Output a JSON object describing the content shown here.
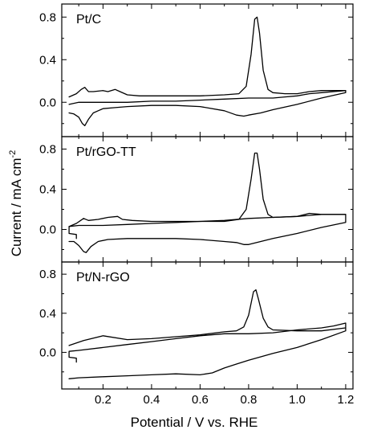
{
  "chart_data": {
    "type": "line",
    "xlabel": "Potential / V vs. RHE",
    "ylabel_main": "Current / mA cm",
    "ylabel_sup": "-2",
    "xlim": [
      0.03,
      1.23
    ],
    "xticks": [
      "0.2",
      "0.4",
      "0.6",
      "0.8",
      "1.0",
      "1.2"
    ],
    "xtick_values": [
      0.2,
      0.4,
      0.6,
      0.8,
      1.0,
      1.2
    ],
    "panels": [
      {
        "label": "Pt/C",
        "ylim": [
          -0.3,
          0.9
        ],
        "yticks": [
          "0.8",
          "0.4",
          "0.0"
        ],
        "ytick_values": [
          0.8,
          0.4,
          0.0
        ],
        "curves": [
          [
            [
              0.06,
              -0.1
            ],
            [
              0.08,
              -0.11
            ],
            [
              0.1,
              -0.14
            ],
            [
              0.115,
              -0.2
            ],
            [
              0.125,
              -0.22
            ],
            [
              0.14,
              -0.16
            ],
            [
              0.16,
              -0.1
            ],
            [
              0.18,
              -0.08
            ],
            [
              0.2,
              -0.06
            ],
            [
              0.25,
              -0.05
            ],
            [
              0.3,
              -0.04
            ],
            [
              0.4,
              -0.03
            ],
            [
              0.5,
              -0.03
            ],
            [
              0.6,
              -0.04
            ],
            [
              0.7,
              -0.08
            ],
            [
              0.75,
              -0.12
            ],
            [
              0.78,
              -0.13
            ],
            [
              0.8,
              -0.12
            ],
            [
              0.85,
              -0.1
            ],
            [
              0.9,
              -0.07
            ],
            [
              1.0,
              -0.02
            ],
            [
              1.1,
              0.04
            ],
            [
              1.2,
              0.09
            ],
            [
              1.2,
              0.11
            ],
            [
              1.15,
              0.1
            ],
            [
              1.1,
              0.09
            ],
            [
              1.05,
              0.08
            ],
            [
              1.0,
              0.06
            ],
            [
              0.95,
              0.05
            ],
            [
              0.9,
              0.04
            ],
            [
              0.85,
              0.04
            ],
            [
              0.8,
              0.04
            ],
            [
              0.7,
              0.03
            ],
            [
              0.6,
              0.02
            ],
            [
              0.5,
              0.01
            ],
            [
              0.4,
              0.01
            ],
            [
              0.3,
              0.0
            ],
            [
              0.2,
              0.0
            ],
            [
              0.1,
              0.0
            ],
            [
              0.06,
              -0.02
            ]
          ],
          [
            [
              0.06,
              0.05
            ],
            [
              0.09,
              0.08
            ],
            [
              0.11,
              0.12
            ],
            [
              0.125,
              0.14
            ],
            [
              0.14,
              0.1
            ],
            [
              0.16,
              0.1
            ],
            [
              0.2,
              0.11
            ],
            [
              0.22,
              0.1
            ],
            [
              0.25,
              0.12
            ],
            [
              0.27,
              0.1
            ],
            [
              0.3,
              0.07
            ],
            [
              0.35,
              0.06
            ],
            [
              0.45,
              0.06
            ],
            [
              0.6,
              0.06
            ],
            [
              0.7,
              0.07
            ],
            [
              0.76,
              0.08
            ],
            [
              0.79,
              0.15
            ],
            [
              0.81,
              0.45
            ],
            [
              0.825,
              0.78
            ],
            [
              0.835,
              0.8
            ],
            [
              0.845,
              0.65
            ],
            [
              0.86,
              0.3
            ],
            [
              0.88,
              0.12
            ],
            [
              0.9,
              0.09
            ],
            [
              0.95,
              0.08
            ],
            [
              1.0,
              0.08
            ],
            [
              1.05,
              0.1
            ],
            [
              1.1,
              0.11
            ],
            [
              1.2,
              0.11
            ]
          ]
        ]
      },
      {
        "label": "Pt/rGO-TT",
        "ylim": [
          -0.3,
          0.9
        ],
        "yticks": [
          "0.8",
          "0.4",
          "0.0"
        ],
        "ytick_values": [
          0.8,
          0.4,
          0.0
        ],
        "curves": [
          [
            [
              0.06,
              -0.12
            ],
            [
              0.08,
              -0.12
            ],
            [
              0.1,
              -0.16
            ],
            [
              0.12,
              -0.22
            ],
            [
              0.13,
              -0.23
            ],
            [
              0.15,
              -0.17
            ],
            [
              0.18,
              -0.12
            ],
            [
              0.22,
              -0.1
            ],
            [
              0.3,
              -0.09
            ],
            [
              0.4,
              -0.09
            ],
            [
              0.5,
              -0.09
            ],
            [
              0.6,
              -0.1
            ],
            [
              0.7,
              -0.12
            ],
            [
              0.75,
              -0.13
            ],
            [
              0.78,
              -0.15
            ],
            [
              0.8,
              -0.15
            ],
            [
              0.85,
              -0.12
            ],
            [
              0.9,
              -0.09
            ],
            [
              1.0,
              -0.04
            ],
            [
              1.1,
              0.02
            ],
            [
              1.2,
              0.07
            ],
            [
              1.2,
              0.15
            ],
            [
              1.15,
              0.15
            ],
            [
              1.1,
              0.15
            ],
            [
              1.05,
              0.14
            ],
            [
              1.0,
              0.13
            ],
            [
              0.9,
              0.12
            ],
            [
              0.8,
              0.11
            ],
            [
              0.7,
              0.09
            ],
            [
              0.6,
              0.08
            ],
            [
              0.5,
              0.07
            ],
            [
              0.4,
              0.06
            ],
            [
              0.3,
              0.05
            ],
            [
              0.2,
              0.04
            ],
            [
              0.1,
              0.04
            ],
            [
              0.06,
              0.03
            ],
            [
              0.06,
              -0.04
            ],
            [
              0.09,
              -0.05
            ],
            [
              0.09,
              -0.09
            ]
          ],
          [
            [
              0.06,
              0.03
            ],
            [
              0.09,
              0.06
            ],
            [
              0.12,
              0.11
            ],
            [
              0.14,
              0.09
            ],
            [
              0.18,
              0.1
            ],
            [
              0.22,
              0.12
            ],
            [
              0.26,
              0.13
            ],
            [
              0.28,
              0.1
            ],
            [
              0.32,
              0.09
            ],
            [
              0.4,
              0.08
            ],
            [
              0.5,
              0.08
            ],
            [
              0.6,
              0.08
            ],
            [
              0.7,
              0.08
            ],
            [
              0.76,
              0.1
            ],
            [
              0.79,
              0.2
            ],
            [
              0.81,
              0.5
            ],
            [
              0.825,
              0.76
            ],
            [
              0.835,
              0.76
            ],
            [
              0.845,
              0.6
            ],
            [
              0.86,
              0.3
            ],
            [
              0.88,
              0.15
            ],
            [
              0.9,
              0.12
            ],
            [
              1.0,
              0.13
            ],
            [
              1.05,
              0.16
            ],
            [
              1.1,
              0.15
            ],
            [
              1.2,
              0.15
            ]
          ]
        ]
      },
      {
        "label": "Pt/N-rGO",
        "ylim": [
          -0.35,
          0.9
        ],
        "yticks": [
          "0.8",
          "0.4",
          "0.0"
        ],
        "ytick_values": [
          0.8,
          0.4,
          0.0
        ],
        "curves": [
          [
            [
              0.06,
              -0.27
            ],
            [
              0.1,
              -0.26
            ],
            [
              0.2,
              -0.25
            ],
            [
              0.3,
              -0.24
            ],
            [
              0.4,
              -0.23
            ],
            [
              0.5,
              -0.22
            ],
            [
              0.6,
              -0.23
            ],
            [
              0.65,
              -0.21
            ],
            [
              0.7,
              -0.16
            ],
            [
              0.75,
              -0.12
            ],
            [
              0.8,
              -0.08
            ],
            [
              0.9,
              -0.01
            ],
            [
              1.0,
              0.05
            ],
            [
              1.1,
              0.13
            ],
            [
              1.2,
              0.22
            ],
            [
              1.2,
              0.3
            ],
            [
              1.15,
              0.27
            ],
            [
              1.1,
              0.25
            ],
            [
              1.0,
              0.23
            ],
            [
              0.9,
              0.2
            ],
            [
              0.8,
              0.19
            ],
            [
              0.7,
              0.19
            ],
            [
              0.6,
              0.17
            ],
            [
              0.5,
              0.14
            ],
            [
              0.4,
              0.11
            ],
            [
              0.3,
              0.08
            ],
            [
              0.2,
              0.05
            ],
            [
              0.1,
              0.02
            ],
            [
              0.06,
              0.01
            ],
            [
              0.06,
              -0.05
            ],
            [
              0.09,
              -0.06
            ],
            [
              0.09,
              -0.1
            ]
          ],
          [
            [
              0.06,
              0.07
            ],
            [
              0.12,
              0.12
            ],
            [
              0.2,
              0.17
            ],
            [
              0.3,
              0.13
            ],
            [
              0.4,
              0.14
            ],
            [
              0.5,
              0.16
            ],
            [
              0.6,
              0.18
            ],
            [
              0.7,
              0.21
            ],
            [
              0.75,
              0.22
            ],
            [
              0.78,
              0.26
            ],
            [
              0.8,
              0.38
            ],
            [
              0.82,
              0.62
            ],
            [
              0.83,
              0.64
            ],
            [
              0.84,
              0.55
            ],
            [
              0.86,
              0.35
            ],
            [
              0.88,
              0.26
            ],
            [
              0.9,
              0.23
            ],
            [
              1.0,
              0.22
            ],
            [
              1.1,
              0.22
            ],
            [
              1.2,
              0.25
            ]
          ]
        ]
      }
    ]
  }
}
